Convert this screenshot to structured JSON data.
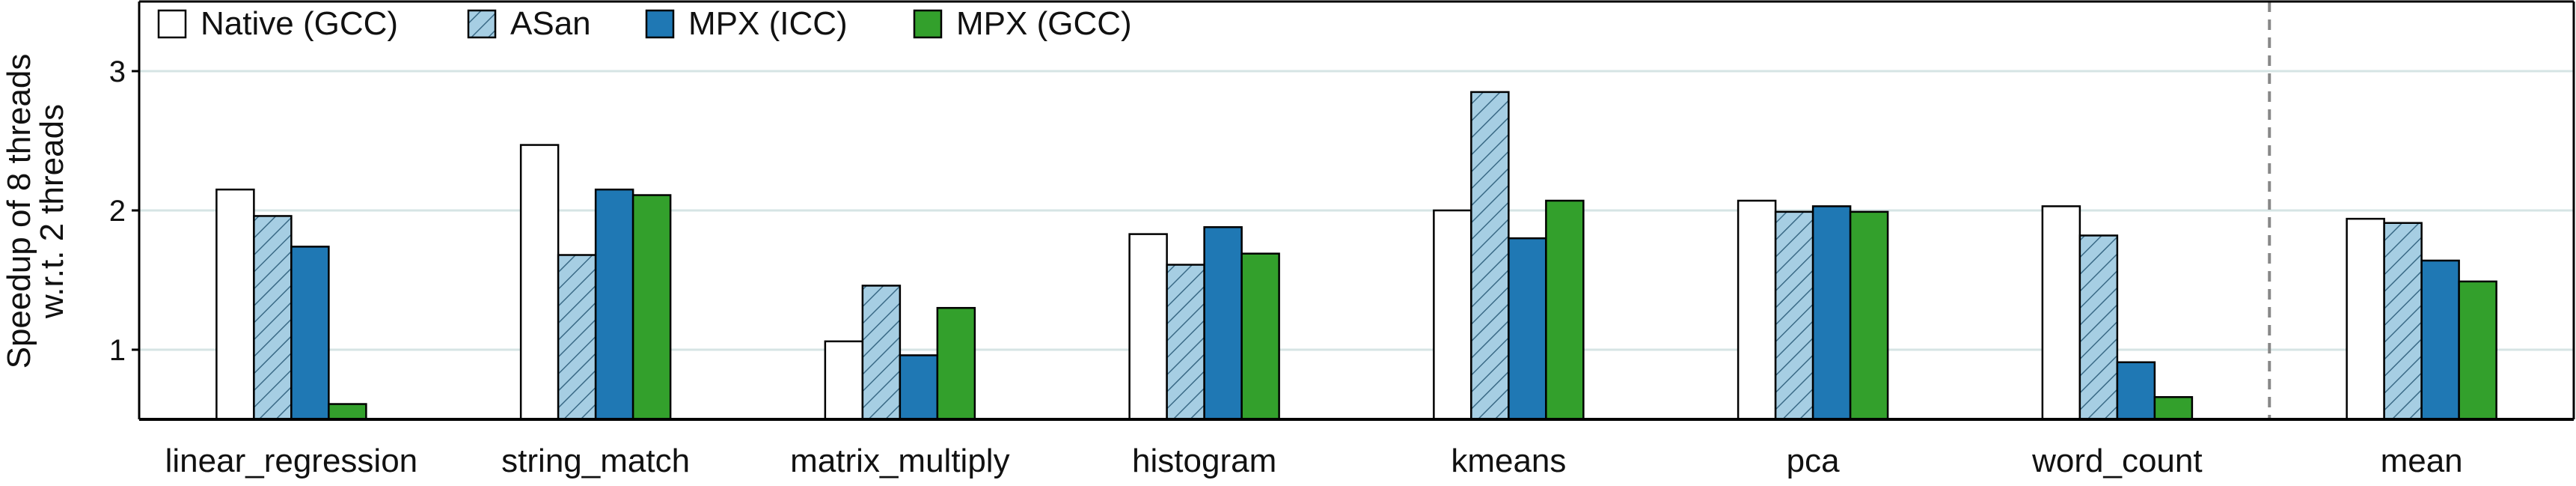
{
  "chart_data": {
    "type": "bar",
    "title": "",
    "ylabel_lines": [
      "Speedup of 8 threads",
      "w.r.t. 2 threads"
    ],
    "xlabel": "",
    "ylim": [
      0.5,
      3.5
    ],
    "yticks": [
      1,
      2,
      3
    ],
    "grid": "horizontal",
    "legend_position": "top-left",
    "separator_before_category": "mean",
    "categories": [
      "linear_regression",
      "string_match",
      "matrix_multiply",
      "histogram",
      "kmeans",
      "pca",
      "word_count",
      "mean"
    ],
    "series": [
      {
        "name": "Native (GCC)",
        "color": "#ffffff",
        "pattern": "none",
        "values": [
          2.15,
          2.47,
          1.06,
          1.83,
          2.0,
          2.07,
          2.03,
          1.94
        ]
      },
      {
        "name": "ASan",
        "color": "#a6cee3",
        "pattern": "hatch",
        "values": [
          1.96,
          1.68,
          1.46,
          1.61,
          2.85,
          1.99,
          1.82,
          1.91
        ]
      },
      {
        "name": "MPX (ICC)",
        "color": "#1f78b4",
        "pattern": "none",
        "values": [
          1.74,
          2.15,
          0.96,
          1.88,
          1.8,
          2.03,
          0.91,
          1.64
        ]
      },
      {
        "name": "MPX (GCC)",
        "color": "#33a02c",
        "pattern": "none",
        "values": [
          0.61,
          2.11,
          1.3,
          1.69,
          2.07,
          1.99,
          0.66,
          1.49
        ]
      }
    ]
  }
}
